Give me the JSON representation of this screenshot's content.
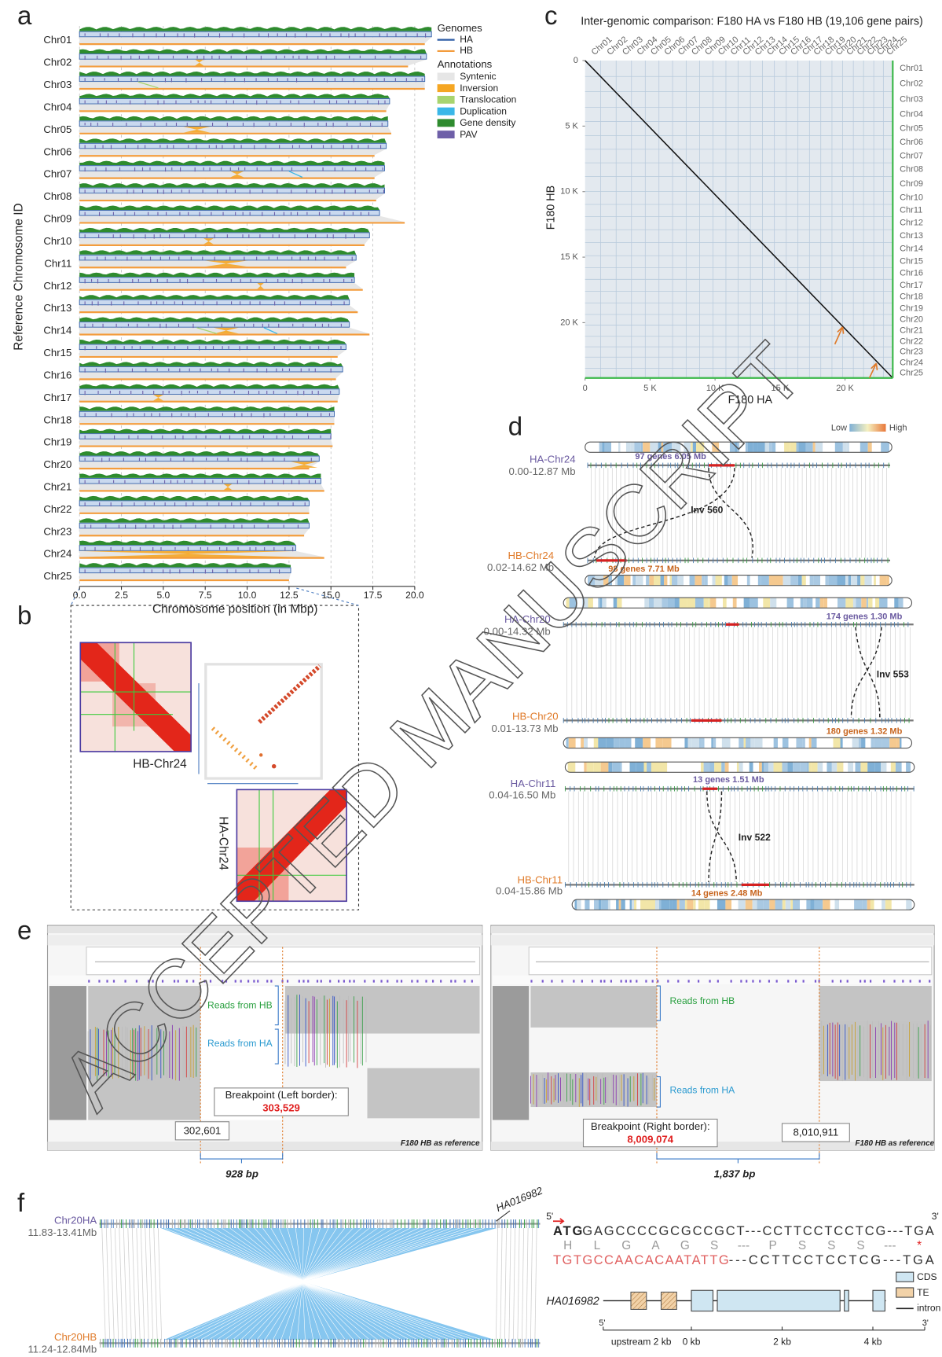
{
  "panel_labels": [
    "a",
    "b",
    "c",
    "d",
    "e",
    "f"
  ],
  "watermark": "ACCEPTED MANUSCRIPT",
  "chart_data": [
    {
      "type": "chromosome",
      "y_label": "Reference Chromosome ID",
      "x_label": "Chromosome position (in Mbp)",
      "legend_title": "Genomes",
      "annotations_title": "Annotations",
      "categories": [
        "Chr01",
        "Chr02",
        "Chr03",
        "Chr04",
        "Chr05",
        "Chr06",
        "Chr07",
        "Chr08",
        "Chr09",
        "Chr10",
        "Chr11",
        "Chr12",
        "Chr13",
        "Chr14",
        "Chr15",
        "Chr16",
        "Chr17",
        "Chr18",
        "Chr19",
        "Chr20",
        "Chr21",
        "Chr22",
        "Chr23",
        "Chr24",
        "Chr25"
      ],
      "series": [
        {
          "name": "HA",
          "color": "#2f5da6",
          "values": [
            21.0,
            20.7,
            20.6,
            18.5,
            18.4,
            18.3,
            18.2,
            18.2,
            17.9,
            17.3,
            16.5,
            16.4,
            16.1,
            16.1,
            15.9,
            15.7,
            15.5,
            15.2,
            15.0,
            14.3,
            14.4,
            13.7,
            13.7,
            12.9,
            12.6
          ]
        },
        {
          "name": "HB",
          "color": "#f39c3c",
          "values": [
            20.6,
            19.6,
            20.6,
            18.3,
            18.6,
            17.6,
            17.6,
            17.7,
            19.4,
            17.0,
            15.9,
            16.9,
            16.6,
            17.3,
            15.4,
            15.3,
            15.4,
            15.2,
            15.1,
            13.7,
            14.6,
            13.7,
            13.4,
            14.6,
            12.5
          ]
        }
      ],
      "annotations": [
        {
          "name": "Syntenic",
          "color": "#e6e6e6"
        },
        {
          "name": "Inversion",
          "color": "#f5a623"
        },
        {
          "name": "Translocation",
          "color": "#a8d46f"
        },
        {
          "name": "Duplication",
          "color": "#3ab7e8"
        },
        {
          "name": "Gene density",
          "color": "#2e8b2e"
        },
        {
          "name": "PAV",
          "color": "#6e5fa8"
        }
      ],
      "xlim": [
        0,
        21.5
      ],
      "xticks": [
        {
          "value": 0,
          "label": "0.0"
        },
        2.5,
        {
          "value": 5,
          "label": "5.0"
        },
        7.5,
        {
          "value": 10,
          "label": "10.0"
        },
        12.5,
        {
          "value": 15,
          "label": "15.0"
        },
        17.5,
        {
          "value": 20,
          "label": "20.0"
        }
      ]
    },
    {
      "type": "dotplot",
      "title": "Inter-genomic comparison: F180 HA vs F180 HB (19,106 gene pairs)",
      "x_label": "F180 HA",
      "y_label": "F180 HB",
      "xlim": [
        0,
        23670
      ],
      "ylim": [
        0,
        24220
      ],
      "xticks": [
        0,
        {
          "value": 5000,
          "label": "5 K"
        },
        {
          "value": 10000,
          "label": "10 K"
        },
        {
          "value": 15000,
          "label": "15 K"
        },
        {
          "value": 20000,
          "label": "20 K"
        }
      ],
      "yticks": [
        0,
        {
          "value": 5000,
          "label": "5 K"
        },
        {
          "value": 10000,
          "label": "10 K"
        },
        {
          "value": 15000,
          "label": "15 K"
        },
        {
          "value": 20000,
          "label": "20 K"
        }
      ],
      "x_chromosomes": [
        "Chr01",
        "Chr02",
        "Chr03",
        "Chr04",
        "Chr05",
        "Chr06",
        "Chr07",
        "Chr08",
        "Chr09",
        "Chr10",
        "Chr11",
        "Chr12",
        "Chr13",
        "Chr14",
        "Chr15",
        "Chr16",
        "Chr17",
        "Chr18",
        "Chr19",
        "Chr20",
        "Chr21",
        "Chr22",
        "Chr23",
        "Chr24",
        "Chr25"
      ],
      "y_chromosomes": [
        "Chr01",
        "Chr02",
        "Chr03",
        "Chr04",
        "Chr05",
        "Chr06",
        "Chr07",
        "Chr08",
        "Chr09",
        "Chr10",
        "Chr11",
        "Chr12",
        "Chr13",
        "Chr14",
        "Chr15",
        "Chr16",
        "Chr17",
        "Chr18",
        "Chr19",
        "Chr20",
        "Chr21",
        "Chr22",
        "Chr23",
        "Chr24",
        "Chr25"
      ]
    }
  ],
  "panel_b": {
    "heatmap_hb": "HB-Chr24",
    "heatmap_ha": "HA-Chr24"
  },
  "panel_d": {
    "low": "Low",
    "high": "High",
    "pairs": [
      {
        "ha_name": "HA-Chr24",
        "ha_range": "0.00-12.87 Mb",
        "ha_block": "97 genes 6.05 Mb",
        "inversion": "Inv 560",
        "hb_name": "HB-Chr24",
        "hb_range": "0.02-14.62 Mb",
        "hb_block": "98 genes 7.71 Mb"
      },
      {
        "ha_name": "HA-Chr20",
        "ha_range": "0.00-14.32 Mb",
        "ha_block": "174 genes 1.30 Mb",
        "inversion": "Inv 553",
        "hb_name": "HB-Chr20",
        "hb_range": "0.01-13.73 Mb",
        "hb_block": "180 genes 1.32 Mb"
      },
      {
        "ha_name": "HA-Chr11",
        "ha_range": "0.04-16.50 Mb",
        "ha_block": "13 genes 1.51 Mb",
        "inversion": "Inv 522",
        "hb_name": "HB-Chr11",
        "hb_range": "0.04-15.86 Mb",
        "hb_block": "14 genes 2.48 Mb"
      }
    ]
  },
  "panel_e": {
    "left": {
      "reads_hb": "Reads from HB",
      "reads_ha": "Reads from HA",
      "breakpoint_title": "Breakpoint (Left border):",
      "breakpoint": "303,529",
      "other_position": "302,601",
      "reference": "F180 HB as reference",
      "distance": "928 bp"
    },
    "right": {
      "reads_hb": "Reads from HB",
      "reads_ha": "Reads from HA",
      "breakpoint_title": "Breakpoint (Right border):",
      "breakpoint": "8,009,074",
      "other_position": "8,010,911",
      "reference": "F180 HB as reference",
      "distance": "1,837  bp"
    }
  },
  "panel_f": {
    "top_name": "Chr20HA",
    "top_range": "11.83-13.41Mb",
    "bottom_name": "Chr20HB",
    "bottom_range": "11.24-12.84Mb",
    "gene_callout": "HA016982",
    "five_prime": "5'",
    "three_prime": "3'",
    "start_codon": "ATG",
    "ha_seq": "GAGCCCCGCGCCGCT---CCTTCCTCCTCG---TGA",
    "amino_acids": [
      "H",
      "L",
      "G",
      "A",
      "G",
      "S",
      "---",
      "P",
      "S",
      "S",
      "S",
      "---",
      "*"
    ],
    "hb_seq_te": "TGTGCCAACACAATATTG",
    "hb_seq_rest": "---CCTTCCTCCTCG---TGA",
    "legend": [
      "CDS",
      "TE",
      "intron"
    ],
    "gene_name": "HA016982",
    "axis_ticks": [
      "upstream 2 kb",
      "0 kb",
      "2 kb",
      "4 kb"
    ]
  }
}
